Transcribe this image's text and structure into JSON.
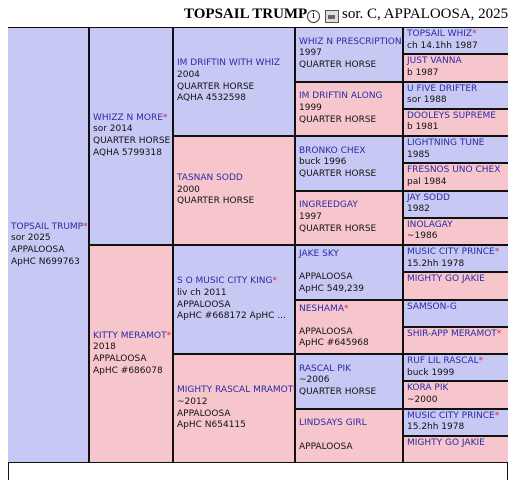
{
  "header": {
    "name": "TOPSAIL TRUMP",
    "info_glyph": "i",
    "description": "sor. C, APPALOOSA, 2025"
  },
  "pedigree": {
    "subject": {
      "name": "TOPSAIL TRUMP",
      "star": "*",
      "lines": [
        "sor 2025",
        "APPALOOSA",
        "ApHC N699763"
      ]
    },
    "sire": {
      "name": "WHIZZ N MORE",
      "star": "*",
      "lines": [
        "sor 2014",
        "QUARTER HORSE",
        "AQHA 5799318"
      ]
    },
    "dam": {
      "name": "KITTY MERAMOT",
      "star": "*",
      "lines": [
        "2018",
        "APPALOOSA",
        "ApHC #686078"
      ]
    },
    "g3": [
      {
        "name": "IM DRIFTIN WITH WHIZ",
        "star": "",
        "lines": [
          "2004",
          "QUARTER HORSE",
          "AQHA 4532598"
        ]
      },
      {
        "name": "TASNAN SODD",
        "star": "",
        "lines": [
          "2000",
          "QUARTER HORSE"
        ]
      },
      {
        "name": "S O MUSIC CITY KING",
        "star": "*",
        "lines": [
          "liv ch 2011",
          "APPALOOSA",
          "ApHC #668172 ApHC ..."
        ]
      },
      {
        "name": "MIGHTY RASCAL MRAMOT",
        "star": "*",
        "lines": [
          "~2012",
          "APPALOOSA",
          "ApHC N654115"
        ]
      }
    ],
    "g4": [
      {
        "name": "WHIZ N PRESCRIPTION",
        "star": "",
        "lines": [
          "1997",
          "QUARTER HORSE"
        ]
      },
      {
        "name": "IM DRIFTIN ALONG",
        "star": "",
        "lines": [
          "1999",
          "QUARTER HORSE"
        ]
      },
      {
        "name": "BRONKO CHEX",
        "star": "",
        "lines": [
          "buck 1996",
          "QUARTER HORSE"
        ]
      },
      {
        "name": "INGREEDGAY",
        "star": "",
        "lines": [
          "1997",
          "QUARTER HORSE"
        ]
      },
      {
        "name": "JAKE SKY",
        "star": "",
        "lines": [
          "",
          "APPALOOSA",
          "ApHC 549,239"
        ]
      },
      {
        "name": "NESHAMA",
        "star": "*",
        "lines": [
          "",
          "APPALOOSA",
          "ApHC #645968"
        ]
      },
      {
        "name": "RASCAL PIK",
        "star": "",
        "lines": [
          "~2006",
          "QUARTER HORSE"
        ]
      },
      {
        "name": "LINDSAYS GIRL",
        "star": "",
        "lines": [
          "",
          "APPALOOSA"
        ]
      }
    ],
    "g5": [
      {
        "name": "TOPSAIL WHIZ",
        "star": "*",
        "lines": [
          "ch 14.1hh 1987"
        ]
      },
      {
        "name": "JUST VANNA",
        "star": "",
        "lines": [
          "b 1987"
        ]
      },
      {
        "name": "U FIVE DRIFTER",
        "star": "",
        "lines": [
          "sor 1988"
        ]
      },
      {
        "name": "DOOLEYS SUPREME",
        "star": "",
        "lines": [
          "b 1981"
        ]
      },
      {
        "name": "LIGHTNING TUNE",
        "star": "",
        "lines": [
          "1985"
        ]
      },
      {
        "name": "FRESNOS UNO CHEX",
        "star": "",
        "lines": [
          "pal 1984"
        ]
      },
      {
        "name": "JAY SODD",
        "star": "",
        "lines": [
          "1982"
        ]
      },
      {
        "name": "INOLAGAY",
        "star": "",
        "lines": [
          "~1986"
        ]
      },
      {
        "name": "MUSIC CITY PRINCE",
        "star": "*",
        "lines": [
          "15.2hh 1978"
        ]
      },
      {
        "name": "MIGHTY GO JAKIE",
        "star": "",
        "lines": []
      },
      {
        "name": "SAMSON-G",
        "star": "",
        "lines": []
      },
      {
        "name": "SHIR-APP MERAMOT",
        "star": "*",
        "lines": []
      },
      {
        "name": "RUF LIL RASCAL",
        "star": "*",
        "lines": [
          "buck 1999"
        ]
      },
      {
        "name": "KORA PIK",
        "star": "",
        "lines": [
          "~2000"
        ]
      },
      {
        "name": "MUSIC CITY PRINCE",
        "star": "*",
        "lines": [
          "15.2hh 1978"
        ]
      },
      {
        "name": "MIGHTY GO JAKIE",
        "star": "",
        "lines": []
      }
    ]
  }
}
